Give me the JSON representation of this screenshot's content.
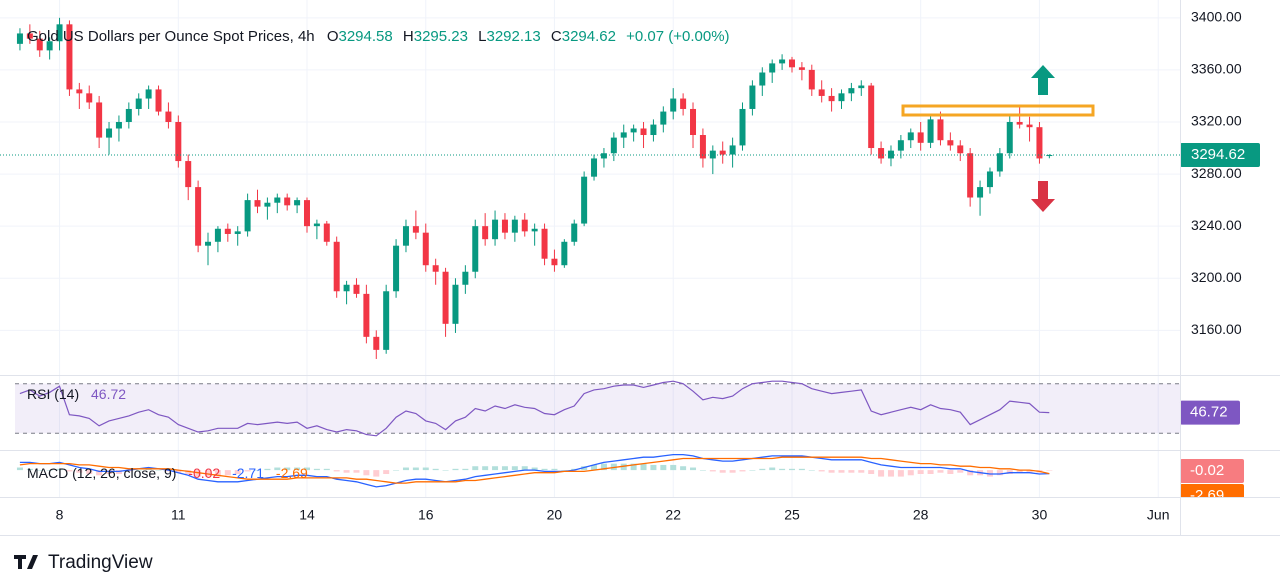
{
  "chart_data": {
    "type": "candlestick",
    "title": "Gold US Dollars per Ounce Spot Prices, 4h",
    "ohlc_labels": [
      "O",
      "H",
      "L",
      "C"
    ],
    "change_label": "+0.07 (+0.00%)",
    "up_color": "#089981",
    "down_color": "#f23645",
    "grid": true,
    "xlim": [
      -0.5,
      117.2
    ],
    "xticks": [
      {
        "value": 4,
        "label": "8"
      },
      {
        "value": 16,
        "label": "11"
      },
      {
        "value": 29,
        "label": "14"
      },
      {
        "value": 41,
        "label": "16"
      },
      {
        "value": 54,
        "label": "20"
      },
      {
        "value": 66,
        "label": "22"
      },
      {
        "value": 78,
        "label": "25"
      },
      {
        "value": 91,
        "label": "28"
      },
      {
        "value": 103,
        "label": "30"
      },
      {
        "value": 115,
        "label": "Jun"
      }
    ],
    "ylim": [
      3128,
      3406
    ],
    "yticks": [
      {
        "value": 3160,
        "label": "3160.00"
      },
      {
        "value": 3200,
        "label": "3200.00"
      },
      {
        "value": 3240,
        "label": "3240.00"
      },
      {
        "value": 3280,
        "label": "3280.00"
      },
      {
        "value": 3320,
        "label": "3320.00"
      },
      {
        "value": 3360,
        "label": "3360.00"
      },
      {
        "value": 3400,
        "label": "3400.00"
      }
    ],
    "candles": [
      [
        3380,
        3392,
        3375,
        3388
      ],
      [
        3388,
        3395,
        3380,
        3384
      ],
      [
        3384,
        3390,
        3370,
        3375
      ],
      [
        3375,
        3385,
        3368,
        3382
      ],
      [
        3382,
        3400,
        3375,
        3395
      ],
      [
        3395,
        3398,
        3340,
        3345
      ],
      [
        3345,
        3350,
        3330,
        3342
      ],
      [
        3342,
        3348,
        3330,
        3335
      ],
      [
        3335,
        3340,
        3300,
        3308
      ],
      [
        3308,
        3320,
        3295,
        3315
      ],
      [
        3315,
        3325,
        3305,
        3320
      ],
      [
        3320,
        3335,
        3315,
        3330
      ],
      [
        3330,
        3342,
        3325,
        3338
      ],
      [
        3338,
        3348,
        3330,
        3345
      ],
      [
        3345,
        3348,
        3325,
        3328
      ],
      [
        3328,
        3335,
        3315,
        3320
      ],
      [
        3320,
        3325,
        3285,
        3290
      ],
      [
        3290,
        3295,
        3260,
        3270
      ],
      [
        3270,
        3275,
        3220,
        3225
      ],
      [
        3225,
        3235,
        3210,
        3228
      ],
      [
        3228,
        3240,
        3220,
        3238
      ],
      [
        3238,
        3242,
        3228,
        3234
      ],
      [
        3234,
        3240,
        3225,
        3236
      ],
      [
        3236,
        3265,
        3232,
        3260
      ],
      [
        3260,
        3268,
        3250,
        3255
      ],
      [
        3255,
        3262,
        3245,
        3258
      ],
      [
        3258,
        3265,
        3250,
        3262
      ],
      [
        3262,
        3265,
        3252,
        3256
      ],
      [
        3256,
        3262,
        3250,
        3260
      ],
      [
        3260,
        3262,
        3235,
        3240
      ],
      [
        3240,
        3245,
        3230,
        3242
      ],
      [
        3242,
        3244,
        3225,
        3228
      ],
      [
        3228,
        3232,
        3185,
        3190
      ],
      [
        3190,
        3198,
        3180,
        3195
      ],
      [
        3195,
        3200,
        3185,
        3188
      ],
      [
        3188,
        3195,
        3150,
        3155
      ],
      [
        3155,
        3160,
        3138,
        3145
      ],
      [
        3145,
        3195,
        3142,
        3190
      ],
      [
        3190,
        3230,
        3185,
        3225
      ],
      [
        3225,
        3245,
        3220,
        3240
      ],
      [
        3240,
        3252,
        3230,
        3235
      ],
      [
        3235,
        3242,
        3205,
        3210
      ],
      [
        3210,
        3215,
        3195,
        3205
      ],
      [
        3205,
        3208,
        3155,
        3165
      ],
      [
        3165,
        3200,
        3158,
        3195
      ],
      [
        3195,
        3210,
        3188,
        3205
      ],
      [
        3205,
        3245,
        3200,
        3240
      ],
      [
        3240,
        3250,
        3225,
        3230
      ],
      [
        3230,
        3252,
        3225,
        3245
      ],
      [
        3245,
        3250,
        3230,
        3235
      ],
      [
        3235,
        3248,
        3228,
        3245
      ],
      [
        3245,
        3250,
        3232,
        3236
      ],
      [
        3236,
        3242,
        3225,
        3238
      ],
      [
        3238,
        3242,
        3210,
        3215
      ],
      [
        3215,
        3222,
        3205,
        3210
      ],
      [
        3210,
        3230,
        3208,
        3228
      ],
      [
        3228,
        3245,
        3225,
        3242
      ],
      [
        3242,
        3282,
        3240,
        3278
      ],
      [
        3278,
        3295,
        3275,
        3292
      ],
      [
        3292,
        3300,
        3285,
        3296
      ],
      [
        3296,
        3312,
        3290,
        3308
      ],
      [
        3308,
        3318,
        3300,
        3312
      ],
      [
        3312,
        3318,
        3305,
        3315
      ],
      [
        3315,
        3320,
        3300,
        3310
      ],
      [
        3310,
        3322,
        3305,
        3318
      ],
      [
        3318,
        3332,
        3312,
        3328
      ],
      [
        3328,
        3346,
        3322,
        3338
      ],
      [
        3338,
        3342,
        3325,
        3330
      ],
      [
        3330,
        3335,
        3300,
        3310
      ],
      [
        3310,
        3315,
        3285,
        3292
      ],
      [
        3292,
        3302,
        3280,
        3298
      ],
      [
        3298,
        3305,
        3288,
        3295
      ],
      [
        3295,
        3308,
        3285,
        3302
      ],
      [
        3302,
        3335,
        3298,
        3330
      ],
      [
        3330,
        3352,
        3325,
        3348
      ],
      [
        3348,
        3362,
        3340,
        3358
      ],
      [
        3358,
        3368,
        3350,
        3365
      ],
      [
        3365,
        3372,
        3360,
        3368
      ],
      [
        3368,
        3370,
        3358,
        3362
      ],
      [
        3362,
        3366,
        3352,
        3360
      ],
      [
        3360,
        3364,
        3340,
        3345
      ],
      [
        3345,
        3352,
        3335,
        3340
      ],
      [
        3340,
        3346,
        3328,
        3336
      ],
      [
        3336,
        3345,
        3330,
        3342
      ],
      [
        3342,
        3350,
        3336,
        3346
      ],
      [
        3346,
        3352,
        3340,
        3348
      ],
      [
        3348,
        3350,
        3295,
        3300
      ],
      [
        3300,
        3305,
        3288,
        3292
      ],
      [
        3292,
        3302,
        3286,
        3298
      ],
      [
        3298,
        3310,
        3292,
        3306
      ],
      [
        3306,
        3315,
        3300,
        3312
      ],
      [
        3312,
        3320,
        3298,
        3304
      ],
      [
        3304,
        3325,
        3300,
        3322
      ],
      [
        3322,
        3328,
        3302,
        3306
      ],
      [
        3306,
        3312,
        3298,
        3302
      ],
      [
        3302,
        3306,
        3290,
        3296
      ],
      [
        3296,
        3300,
        3255,
        3262
      ],
      [
        3262,
        3275,
        3248,
        3270
      ],
      [
        3270,
        3285,
        3265,
        3282
      ],
      [
        3282,
        3300,
        3278,
        3296
      ],
      [
        3296,
        3325,
        3292,
        3320
      ],
      [
        3320,
        3332,
        3315,
        3318
      ],
      [
        3318,
        3324,
        3305,
        3316
      ],
      [
        3316,
        3320,
        3288,
        3292
      ],
      [
        3294.58,
        3295.23,
        3292.13,
        3294.62
      ]
    ],
    "rsi": {
      "name": "RSI (14)",
      "color": "#7e57c2",
      "ylim": [
        27,
        73
      ],
      "yticks": [
        30,
        70
      ],
      "values": [
        62,
        65,
        60,
        63,
        68,
        45,
        44,
        42,
        36,
        40,
        42,
        44,
        47,
        49,
        45,
        43,
        37,
        34,
        31,
        32,
        34,
        34,
        34,
        38,
        37,
        38,
        39,
        38,
        39,
        34,
        36,
        33,
        31,
        33,
        32,
        29,
        28,
        34,
        43,
        48,
        46,
        40,
        38,
        33,
        40,
        43,
        50,
        48,
        52,
        50,
        53,
        51,
        50,
        46,
        45,
        49,
        52,
        62,
        65,
        66,
        68,
        69,
        69,
        67,
        69,
        71,
        72,
        70,
        64,
        57,
        59,
        58,
        60,
        66,
        70,
        71,
        72,
        72,
        71,
        70,
        66,
        64,
        62,
        63,
        64,
        65,
        48,
        45,
        47,
        49,
        51,
        49,
        53,
        50,
        49,
        47,
        37,
        41,
        45,
        49,
        56,
        55,
        54,
        47,
        46.72
      ]
    },
    "macd": {
      "name": "MACD (12, 26, close, 9)",
      "ylim": [
        -20,
        14
      ],
      "macd_color": "#2962ff",
      "signal_color": "#ff6d00",
      "hist_up_color": "#b2dfdb",
      "hist_down_color": "#ffcdd2",
      "histogram": [
        2,
        1,
        0,
        0,
        1,
        -1,
        -2,
        -3,
        -4,
        -3,
        -3,
        -1,
        0,
        1,
        0,
        -1,
        -2,
        -3,
        -5,
        -5,
        -5,
        -4,
        -3,
        -1,
        0,
        1,
        2,
        2,
        2,
        2,
        1,
        1,
        -1,
        -2,
        -2,
        -4,
        -5,
        -3,
        0,
        2,
        2,
        2,
        1,
        0,
        1,
        1,
        3,
        3,
        3,
        3,
        3,
        3,
        2,
        1,
        1,
        0,
        1,
        3,
        4,
        5,
        5,
        5,
        5,
        5,
        4,
        4,
        4,
        3,
        2,
        0,
        -1,
        -2,
        -2,
        -1,
        0,
        1,
        2,
        1,
        1,
        1,
        0,
        -1,
        -2,
        -2,
        -2,
        -2,
        -3,
        -5,
        -5,
        -5,
        -4,
        -3,
        -3,
        -2,
        -3,
        -2,
        -4,
        -4,
        -5,
        -4,
        -3,
        -2,
        -2,
        -2,
        -0.02
      ],
      "macd_line": [
        6,
        6,
        5,
        5,
        6,
        4,
        2,
        1,
        -1,
        -1,
        -1,
        0,
        1,
        2,
        1,
        0,
        -2,
        -4,
        -7,
        -8,
        -9,
        -9,
        -9,
        -8,
        -7,
        -6,
        -5,
        -5,
        -4,
        -4,
        -5,
        -5,
        -7,
        -8,
        -9,
        -11,
        -13,
        -12,
        -10,
        -8,
        -7,
        -7,
        -8,
        -9,
        -8,
        -7,
        -5,
        -4,
        -3,
        -2,
        -1,
        0,
        0,
        -1,
        -1,
        -1,
        0,
        2,
        4,
        6,
        7,
        8,
        9,
        10,
        10,
        11,
        12,
        12,
        11,
        9,
        8,
        7,
        7,
        8,
        9,
        10,
        11,
        11,
        11,
        11,
        10,
        9,
        8,
        8,
        8,
        8,
        6,
        4,
        3,
        2,
        2,
        2,
        2,
        2,
        1,
        1,
        -1,
        -2,
        -3,
        -3,
        -2,
        -2,
        -2,
        -3,
        -2.71
      ],
      "signal_line": [
        4,
        5,
        5,
        5,
        5,
        5,
        4,
        4,
        3,
        2,
        2,
        1,
        1,
        1,
        1,
        1,
        0,
        -1,
        -2,
        -3,
        -4,
        -5,
        -6,
        -7,
        -7,
        -7,
        -7,
        -7,
        -6,
        -6,
        -6,
        -6,
        -6,
        -6,
        -7,
        -7,
        -8,
        -9,
        -10,
        -10,
        -9,
        -9,
        -9,
        -9,
        -9,
        -8,
        -8,
        -7,
        -6,
        -5,
        -4,
        -3,
        -2,
        -2,
        -2,
        -1,
        -1,
        -1,
        0,
        1,
        2,
        3,
        4,
        5,
        6,
        7,
        8,
        9,
        9,
        9,
        9,
        9,
        9,
        9,
        9,
        9,
        9,
        10,
        10,
        10,
        10,
        10,
        10,
        10,
        10,
        10,
        9,
        9,
        8,
        7,
        6,
        5,
        5,
        4,
        4,
        3,
        3,
        2,
        2,
        1,
        1,
        0,
        0,
        -1,
        -2.69
      ]
    },
    "source": "TradingView"
  }
}
